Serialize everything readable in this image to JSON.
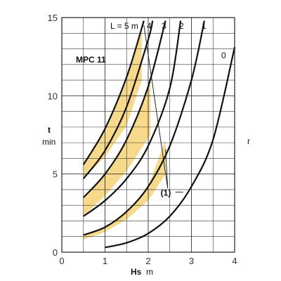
{
  "chart_data": {
    "type": "line",
    "title": "MPC 11",
    "xlabel": "Hs",
    "xunit": "m",
    "ylabel": "t",
    "yunit": "min",
    "xlim": [
      0,
      4
    ],
    "ylim": [
      0,
      15
    ],
    "xticks": [
      0,
      1,
      2,
      3,
      4
    ],
    "yticks": [
      0,
      5,
      10,
      15
    ],
    "grid": true,
    "curve_label_prefix": "L = 5 m",
    "series": [
      {
        "name": "L = 5 m",
        "x": [
          0.5,
          1.0,
          1.5,
          1.9
        ],
        "y": [
          5.6,
          7.9,
          11.2,
          14.8
        ]
      },
      {
        "name": "4",
        "x": [
          0.5,
          1.0,
          1.5,
          2.0,
          2.1
        ],
        "y": [
          4.7,
          6.5,
          9.3,
          13.6,
          14.8
        ]
      },
      {
        "name": "3",
        "x": [
          0.5,
          1.0,
          1.5,
          2.0,
          2.4
        ],
        "y": [
          3.5,
          5.0,
          7.2,
          10.6,
          14.8
        ]
      },
      {
        "name": "2",
        "x": [
          0.5,
          1.0,
          1.5,
          2.0,
          2.5,
          2.75
        ],
        "y": [
          2.3,
          3.3,
          4.7,
          6.8,
          10.5,
          14.8
        ]
      },
      {
        "name": "1",
        "x": [
          0.5,
          1.0,
          1.5,
          2.0,
          2.5,
          3.0,
          3.3
        ],
        "y": [
          1.1,
          1.6,
          2.6,
          4.2,
          6.8,
          11.0,
          14.8
        ]
      },
      {
        "name": "0",
        "x": [
          1.0,
          1.5,
          2.0,
          2.5,
          3.0,
          3.5,
          4.0
        ],
        "y": [
          0.3,
          0.6,
          1.2,
          2.3,
          4.2,
          7.2,
          13.1
        ]
      }
    ],
    "shaded_regions": [
      {
        "x": [
          0.5,
          1.0,
          1.5,
          1.85,
          1.85,
          1.5,
          1.0,
          0.5
        ],
        "y": [
          5.6,
          7.9,
          11.2,
          14.5,
          11.0,
          8.1,
          6.1,
          4.7
        ]
      },
      {
        "x": [
          0.5,
          1.0,
          1.5,
          2.05,
          2.05,
          1.5,
          1.0,
          0.5
        ],
        "y": [
          3.5,
          5.0,
          7.2,
          10.9,
          7.5,
          5.2,
          3.6,
          2.3
        ]
      },
      {
        "x": [
          0.5,
          1.0,
          1.5,
          2.0,
          2.4,
          2.4,
          2.0,
          1.5,
          1.0,
          0.5
        ],
        "y": [
          1.1,
          1.6,
          2.6,
          4.2,
          7.2,
          5.0,
          3.3,
          2.1,
          1.3,
          0.8
        ]
      }
    ],
    "annotations": [
      {
        "text": "(1)",
        "x": 2.45,
        "y": 3.8
      }
    ],
    "leader_lines": [
      {
        "from": [
          2.45,
          4.1
        ],
        "to": [
          1.9,
          14.5
        ]
      },
      {
        "from": [
          2.45,
          4.1
        ],
        "to": [
          2.4,
          6.6
        ]
      }
    ],
    "colors": {
      "shade": "#f7d98c",
      "curve": "#111111",
      "grid": "#333333",
      "axis": "#222222"
    }
  }
}
